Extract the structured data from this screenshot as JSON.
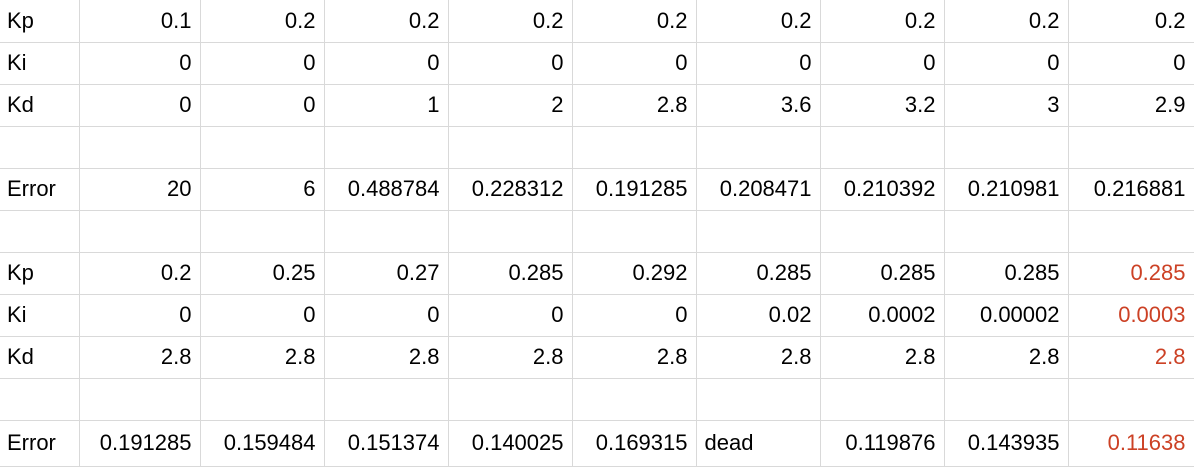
{
  "accent_color": "#cc4125",
  "rows": [
    {
      "label": "Kp",
      "values": [
        "0.1",
        "0.2",
        "0.2",
        "0.2",
        "0.2",
        "0.2",
        "0.2",
        "0.2",
        "0.2"
      ]
    },
    {
      "label": "Ki",
      "values": [
        "0",
        "0",
        "0",
        "0",
        "0",
        "0",
        "0",
        "0",
        "0"
      ]
    },
    {
      "label": "Kd",
      "values": [
        "0",
        "0",
        "1",
        "2",
        "2.8",
        "3.6",
        "3.2",
        "3",
        "2.9"
      ]
    },
    {
      "label": "",
      "values": [
        "",
        "",
        "",
        "",
        "",
        "",
        "",
        "",
        ""
      ]
    },
    {
      "label": "Error",
      "values": [
        "20",
        "6",
        "0.488784",
        "0.228312",
        "0.191285",
        "0.208471",
        "0.210392",
        "0.210981",
        "0.216881"
      ]
    },
    {
      "label": "",
      "values": [
        "",
        "",
        "",
        "",
        "",
        "",
        "",
        "",
        ""
      ]
    },
    {
      "label": "Kp",
      "values": [
        "0.2",
        "0.25",
        "0.27",
        "0.285",
        "0.292",
        "0.285",
        "0.285",
        "0.285",
        "0.285"
      ]
    },
    {
      "label": "Ki",
      "values": [
        "0",
        "0",
        "0",
        "0",
        "0",
        "0.02",
        "0.0002",
        "0.00002",
        "0.0003"
      ]
    },
    {
      "label": "Kd",
      "values": [
        "2.8",
        "2.8",
        "2.8",
        "2.8",
        "2.8",
        "2.8",
        "2.8",
        "2.8",
        "2.8"
      ]
    },
    {
      "label": "",
      "values": [
        "",
        "",
        "",
        "",
        "",
        "",
        "",
        "",
        ""
      ]
    },
    {
      "label": "Error",
      "values": [
        "0.191285",
        "0.159484",
        "0.151374",
        "0.140025",
        "0.169315",
        "dead",
        "0.119876",
        "0.143935",
        "0.11638"
      ]
    }
  ]
}
